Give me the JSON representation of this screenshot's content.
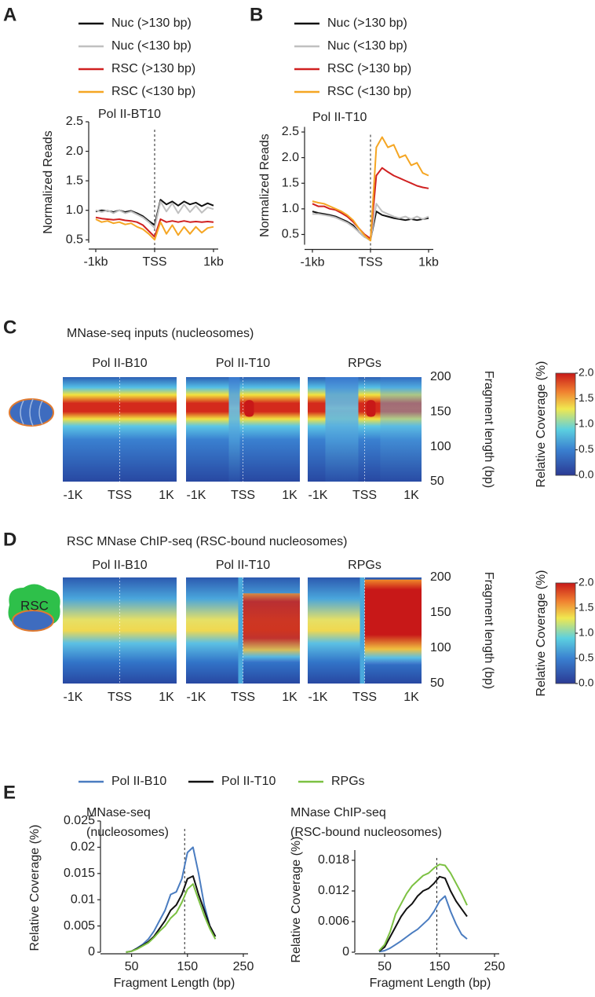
{
  "chart_data": [
    {
      "type": "line",
      "panel": "A",
      "title": "Pol II-BT10",
      "y_label": "Normalized Reads",
      "x": [
        -1000,
        -900,
        -800,
        -700,
        -600,
        -500,
        -400,
        -300,
        -200,
        -100,
        0,
        100,
        200,
        300,
        400,
        500,
        600,
        700,
        800,
        900,
        1000
      ],
      "xlim": [
        -1000,
        1000
      ],
      "xticks": [
        {
          "value": -1000,
          "label": "-1kb"
        },
        {
          "value": 0,
          "label": "TSS"
        },
        {
          "value": 1000,
          "label": "1kb"
        }
      ],
      "ylim": [
        0.45,
        2.5
      ],
      "yticks": [
        0.5,
        {
          "value": 1,
          "label": "1.0"
        },
        1.5,
        {
          "value": 2,
          "label": "2.0"
        },
        2.5
      ],
      "vline": 0,
      "legend": "top-left",
      "series": [
        {
          "name": "Nuc (>130 bp)",
          "color": "#111111",
          "values": [
            0.98,
            1.0,
            0.99,
            0.97,
            1.0,
            0.97,
            0.99,
            0.95,
            0.9,
            0.82,
            0.75,
            1.18,
            1.1,
            1.15,
            1.08,
            1.15,
            1.1,
            1.13,
            1.07,
            1.12,
            1.08
          ]
        },
        {
          "name": "Nuc (<130 bp)",
          "color": "#c0c0c0",
          "values": [
            1.0,
            0.97,
            1.0,
            0.95,
            1.0,
            0.95,
            0.98,
            0.93,
            0.88,
            0.8,
            0.7,
            1.15,
            0.98,
            1.12,
            0.95,
            1.1,
            0.97,
            1.08,
            0.96,
            1.05,
            1.02
          ]
        },
        {
          "name": "RSC (>130 bp)",
          "color": "#d02020",
          "values": [
            0.88,
            0.86,
            0.85,
            0.84,
            0.85,
            0.83,
            0.82,
            0.8,
            0.75,
            0.65,
            0.55,
            0.85,
            0.8,
            0.82,
            0.8,
            0.82,
            0.8,
            0.81,
            0.8,
            0.81,
            0.8
          ]
        },
        {
          "name": "RSC (<130 bp)",
          "color": "#f5a623",
          "values": [
            0.85,
            0.8,
            0.82,
            0.78,
            0.8,
            0.76,
            0.78,
            0.72,
            0.68,
            0.6,
            0.5,
            0.8,
            0.6,
            0.75,
            0.58,
            0.72,
            0.6,
            0.72,
            0.62,
            0.7,
            0.72
          ]
        }
      ]
    },
    {
      "type": "line",
      "panel": "B",
      "title": "Pol II-T10",
      "y_label": "Normalized Reads",
      "x": [
        -1000,
        -900,
        -800,
        -700,
        -600,
        -500,
        -400,
        -300,
        -200,
        -100,
        0,
        100,
        200,
        300,
        400,
        500,
        600,
        700,
        800,
        900,
        1000
      ],
      "xlim": [
        -1000,
        1000
      ],
      "xticks": [
        {
          "value": -1000,
          "label": "-1kb"
        },
        {
          "value": 0,
          "label": "TSS"
        },
        {
          "value": 1000,
          "label": "1kb"
        }
      ],
      "ylim": [
        0.3,
        2.6
      ],
      "yticks": [
        0.5,
        {
          "value": 1,
          "label": "1.0"
        },
        1.5,
        {
          "value": 2,
          "label": "2.0"
        },
        2.5
      ],
      "vline": 0,
      "legend": "top-left",
      "series": [
        {
          "name": "Nuc (>130 bp)",
          "color": "#111111",
          "values": [
            0.95,
            0.92,
            0.9,
            0.88,
            0.85,
            0.8,
            0.75,
            0.68,
            0.55,
            0.45,
            0.4,
            0.95,
            0.88,
            0.85,
            0.82,
            0.8,
            0.78,
            0.8,
            0.78,
            0.8,
            0.82
          ]
        },
        {
          "name": "Nuc (<130 bp)",
          "color": "#c0c0c0",
          "values": [
            0.9,
            0.9,
            0.88,
            0.86,
            0.83,
            0.78,
            0.73,
            0.65,
            0.55,
            0.45,
            0.38,
            1.1,
            0.95,
            0.9,
            0.85,
            0.82,
            0.85,
            0.8,
            0.85,
            0.8,
            0.85
          ]
        },
        {
          "name": "RSC (>130 bp)",
          "color": "#d02020",
          "values": [
            1.1,
            1.05,
            1.05,
            1.0,
            0.98,
            0.92,
            0.85,
            0.75,
            0.62,
            0.5,
            0.42,
            1.65,
            1.8,
            1.72,
            1.65,
            1.6,
            1.55,
            1.5,
            1.45,
            1.42,
            1.4
          ]
        },
        {
          "name": "RSC (<130 bp)",
          "color": "#f5a623",
          "values": [
            1.15,
            1.12,
            1.1,
            1.05,
            1.0,
            0.95,
            0.88,
            0.78,
            0.62,
            0.48,
            0.38,
            2.2,
            2.4,
            2.2,
            2.25,
            2.0,
            2.05,
            1.85,
            1.9,
            1.7,
            1.65
          ]
        }
      ]
    },
    {
      "type": "heatmap",
      "panel": "C",
      "title": "MNase-seq inputs (nucleosomes)",
      "panels": [
        "Pol II-B10",
        "Pol II-T10",
        "RPGs"
      ],
      "xlim": [
        -1000,
        1000
      ],
      "xticks": [
        {
          "value": -1000,
          "label": "-1K"
        },
        {
          "value": 0,
          "label": "TSS"
        },
        {
          "value": 1000,
          "label": "1K"
        }
      ],
      "ylim": [
        50,
        200
      ],
      "yticks": [
        200,
        150,
        100,
        50
      ],
      "y_label": "Fragment length (bp)",
      "colorbar": {
        "label": "Relative Coverage (%)",
        "lim": [
          0,
          2
        ],
        "ticks": [
          {
            "value": 0,
            "label": "0.0"
          },
          0.5,
          {
            "value": 1,
            "label": "1.0"
          },
          1.5,
          {
            "value": 2,
            "label": "2.0"
          }
        ]
      }
    },
    {
      "type": "heatmap",
      "panel": "D",
      "title": "RSC MNase ChIP-seq (RSC-bound nucleosomes)",
      "icon_label": "RSC",
      "panels": [
        "Pol II-B10",
        "Pol II-T10",
        "RPGs"
      ],
      "xlim": [
        -1000,
        1000
      ],
      "xticks": [
        {
          "value": -1000,
          "label": "-1K"
        },
        {
          "value": 0,
          "label": "TSS"
        },
        {
          "value": 1000,
          "label": "1K"
        }
      ],
      "ylim": [
        50,
        200
      ],
      "yticks": [
        200,
        150,
        100,
        50
      ],
      "y_label": "Fragment length (bp)",
      "colorbar": {
        "label": "Relative Coverage (%)",
        "lim": [
          0,
          2
        ],
        "ticks": [
          {
            "value": 0,
            "label": "0.0"
          },
          0.5,
          {
            "value": 1,
            "label": "1.0"
          },
          1.5,
          {
            "value": 2,
            "label": "2.0"
          }
        ]
      }
    },
    {
      "type": "line",
      "panel": "E",
      "title_lines": [
        "MNase-seq",
        "(nucleosomes)"
      ],
      "y_label": "Relative Coverage (%)",
      "x_label": "Fragment Length (bp)",
      "x": [
        40,
        50,
        60,
        70,
        80,
        90,
        100,
        110,
        120,
        130,
        140,
        150,
        160,
        170,
        180,
        190,
        200
      ],
      "xlim": [
        0,
        250
      ],
      "xticks": [
        50,
        150,
        250
      ],
      "ylim": [
        0,
        0.025
      ],
      "yticks": [
        0,
        0.005,
        0.01,
        0.015,
        0.02,
        0.025
      ],
      "vline": 145,
      "legend": "top",
      "series": [
        {
          "name": "Pol II-B10",
          "color": "#4a7cc0",
          "values": [
            0,
            0.0002,
            0.0008,
            0.0015,
            0.0025,
            0.004,
            0.006,
            0.008,
            0.011,
            0.0115,
            0.014,
            0.019,
            0.02,
            0.015,
            0.009,
            0.005,
            0.003
          ]
        },
        {
          "name": "Pol II-T10",
          "color": "#111111",
          "values": [
            0,
            0.0002,
            0.0007,
            0.0013,
            0.002,
            0.003,
            0.0045,
            0.006,
            0.008,
            0.009,
            0.011,
            0.014,
            0.0145,
            0.011,
            0.008,
            0.005,
            0.003
          ]
        },
        {
          "name": "RPGs",
          "color": "#7cc142",
          "values": [
            0,
            0.0002,
            0.0006,
            0.0012,
            0.0018,
            0.0028,
            0.004,
            0.005,
            0.0065,
            0.0075,
            0.0095,
            0.012,
            0.013,
            0.01,
            0.007,
            0.0045,
            0.0025
          ]
        }
      ]
    },
    {
      "type": "line",
      "title_lines": [
        "MNase ChIP-seq",
        "(RSC-bound nucleosomes)"
      ],
      "y_label": "Relative Coverage (%)",
      "x_label": "Fragment Length (bp)",
      "x": [
        40,
        50,
        60,
        70,
        80,
        90,
        100,
        110,
        120,
        130,
        140,
        150,
        160,
        170,
        180,
        190,
        200
      ],
      "xlim": [
        0,
        250
      ],
      "xticks": [
        50,
        150,
        250
      ],
      "ylim": [
        0,
        0.02
      ],
      "yticks": [
        0,
        0.006,
        0.012,
        0.018
      ],
      "vline": 145,
      "series": [
        {
          "color": "#4a7cc0",
          "values": [
            0.0001,
            0.0003,
            0.0008,
            0.0015,
            0.0022,
            0.003,
            0.0038,
            0.0045,
            0.0055,
            0.0065,
            0.008,
            0.01,
            0.011,
            0.008,
            0.0055,
            0.0035,
            0.0026
          ]
        },
        {
          "color": "#111111",
          "values": [
            0.0002,
            0.001,
            0.003,
            0.005,
            0.007,
            0.0085,
            0.0095,
            0.011,
            0.012,
            0.0125,
            0.0135,
            0.0148,
            0.0145,
            0.012,
            0.01,
            0.0085,
            0.007
          ]
        },
        {
          "color": "#7cc142",
          "values": [
            0.0003,
            0.0015,
            0.004,
            0.0075,
            0.0095,
            0.0115,
            0.013,
            0.014,
            0.015,
            0.0155,
            0.0165,
            0.0172,
            0.017,
            0.0155,
            0.0135,
            0.0115,
            0.0092
          ]
        }
      ]
    }
  ]
}
